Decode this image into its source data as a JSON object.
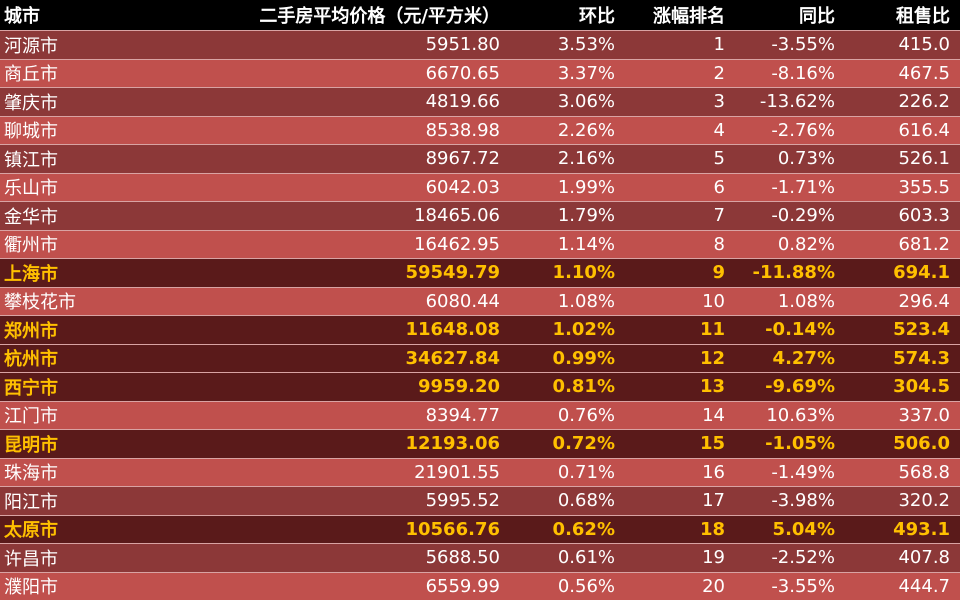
{
  "table": {
    "header": [
      "城市",
      "二手房平均价格（元/平方米）",
      "环比",
      "涨幅排名",
      "同比",
      "租售比"
    ],
    "rows": [
      [
        "河源市",
        "5951.80",
        "3.53%",
        "1",
        "-3.55%",
        "415.0"
      ],
      [
        "商丘市",
        "6670.65",
        "3.37%",
        "2",
        "-8.16%",
        "467.5"
      ],
      [
        "肇庆市",
        "4819.66",
        "3.06%",
        "3",
        "-13.62%",
        "226.2"
      ],
      [
        "聊城市",
        "8538.98",
        "2.26%",
        "4",
        "-2.76%",
        "616.4"
      ],
      [
        "镇江市",
        "8967.72",
        "2.16%",
        "5",
        "0.73%",
        "526.1"
      ],
      [
        "乐山市",
        "6042.03",
        "1.99%",
        "6",
        "-1.71%",
        "355.5"
      ],
      [
        "金华市",
        "18465.06",
        "1.79%",
        "7",
        "-0.29%",
        "603.3"
      ],
      [
        "衢州市",
        "16462.95",
        "1.14%",
        "8",
        "0.82%",
        "681.2"
      ],
      [
        "上海市",
        "59549.79",
        "1.10%",
        "9",
        "-11.88%",
        "694.1"
      ],
      [
        "攀枝花市",
        "6080.44",
        "1.08%",
        "10",
        "1.08%",
        "296.4"
      ],
      [
        "郑州市",
        "11648.08",
        "1.02%",
        "11",
        "-0.14%",
        "523.4"
      ],
      [
        "杭州市",
        "34627.84",
        "0.99%",
        "12",
        "4.27%",
        "574.3"
      ],
      [
        "西宁市",
        "9959.20",
        "0.81%",
        "13",
        "-9.69%",
        "304.5"
      ],
      [
        "江门市",
        "8394.77",
        "0.76%",
        "14",
        "10.63%",
        "337.0"
      ],
      [
        "昆明市",
        "12193.06",
        "0.72%",
        "15",
        "-1.05%",
        "506.0"
      ],
      [
        "珠海市",
        "21901.55",
        "0.71%",
        "16",
        "-1.49%",
        "568.8"
      ],
      [
        "阳江市",
        "5995.52",
        "0.68%",
        "17",
        "-3.98%",
        "320.2"
      ],
      [
        "太原市",
        "10566.76",
        "0.62%",
        "18",
        "5.04%",
        "493.1"
      ],
      [
        "许昌市",
        "5688.50",
        "0.61%",
        "19",
        "-2.52%",
        "407.8"
      ],
      [
        "濮阳市",
        "6559.99",
        "0.56%",
        "20",
        "-3.55%",
        "444.7"
      ]
    ],
    "highlight_rows": [
      8,
      10,
      11,
      12,
      14,
      17
    ]
  }
}
